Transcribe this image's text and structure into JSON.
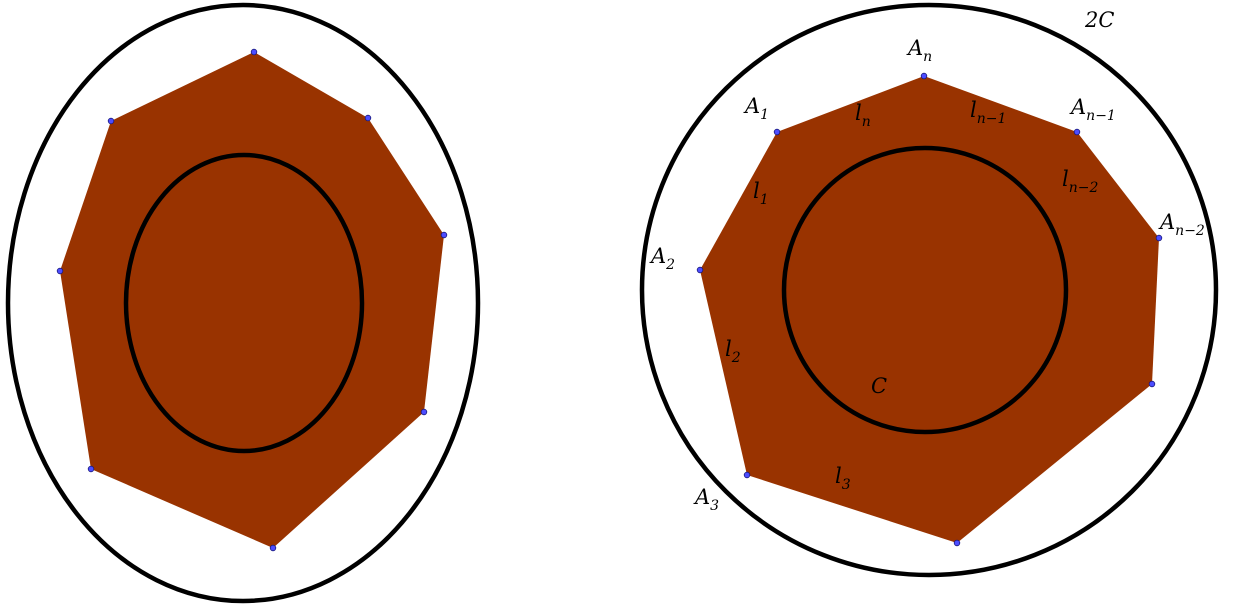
{
  "colors": {
    "polygon_fill": "#993300",
    "curve_stroke": "#000000",
    "vertex_point": "#4d4dff"
  },
  "right_figure": {
    "outer_curve_label": {
      "base": "2C",
      "sub": ""
    },
    "inner_curve_label": {
      "base": "C",
      "sub": ""
    },
    "vertex_labels": [
      {
        "base": "A",
        "sub": "n"
      },
      {
        "base": "A",
        "sub": "1"
      },
      {
        "base": "A",
        "sub": "n−1"
      },
      {
        "base": "A",
        "sub": "n−2"
      },
      {
        "base": "A",
        "sub": "2"
      },
      {
        "base": "A",
        "sub": "3"
      }
    ],
    "side_labels": [
      {
        "base": "l",
        "sub": "n"
      },
      {
        "base": "l",
        "sub": "n−1"
      },
      {
        "base": "l",
        "sub": "n−2"
      },
      {
        "base": "l",
        "sub": "1"
      },
      {
        "base": "l",
        "sub": "2"
      },
      {
        "base": "l",
        "sub": "3"
      }
    ]
  }
}
